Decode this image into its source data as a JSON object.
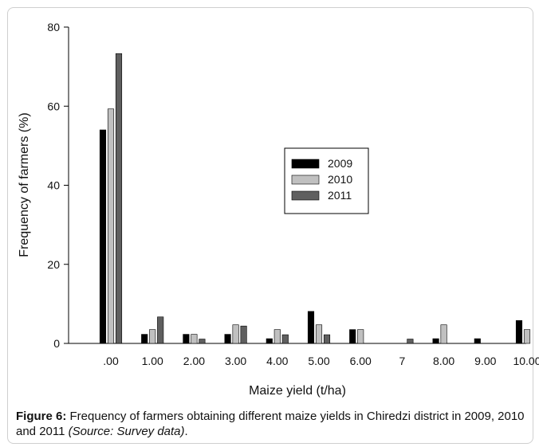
{
  "chart_data": {
    "type": "bar",
    "title": "",
    "xlabel": "Maize yield (t/ha)",
    "ylabel": "Frequency of farmers (%)",
    "ylim": [
      0,
      80
    ],
    "yticks": [
      0,
      20,
      40,
      60,
      80
    ],
    "categories": [
      ".00",
      "1.00",
      "2.00",
      "3.00",
      "4.00",
      "5.00",
      "6.00",
      "7",
      "8.00",
      "9.00",
      "10.00"
    ],
    "series": [
      {
        "name": "2009",
        "color": "#000000",
        "values": [
          54,
          2.3,
          2.3,
          2.3,
          1.2,
          8.1,
          3.5,
          0,
          1.2,
          1.2,
          5.8
        ]
      },
      {
        "name": "2010",
        "color": "#c0c0c0",
        "values": [
          59.3,
          3.5,
          2.3,
          4.7,
          3.5,
          4.7,
          3.5,
          0,
          4.7,
          0,
          3.5
        ]
      },
      {
        "name": "2011",
        "color": "#5f5f5f",
        "values": [
          73.3,
          6.7,
          1.1,
          4.4,
          2.2,
          2.2,
          0,
          1.1,
          0,
          0,
          0
        ]
      }
    ],
    "legend_position": "center-right",
    "grid": false
  },
  "caption": {
    "label": "Figure 6:",
    "text": " Frequency of farmers obtaining different maize yields in Chiredzi district in 2009, 2010 and 2011 ",
    "source": "(Source: Survey data)",
    "end": "."
  }
}
